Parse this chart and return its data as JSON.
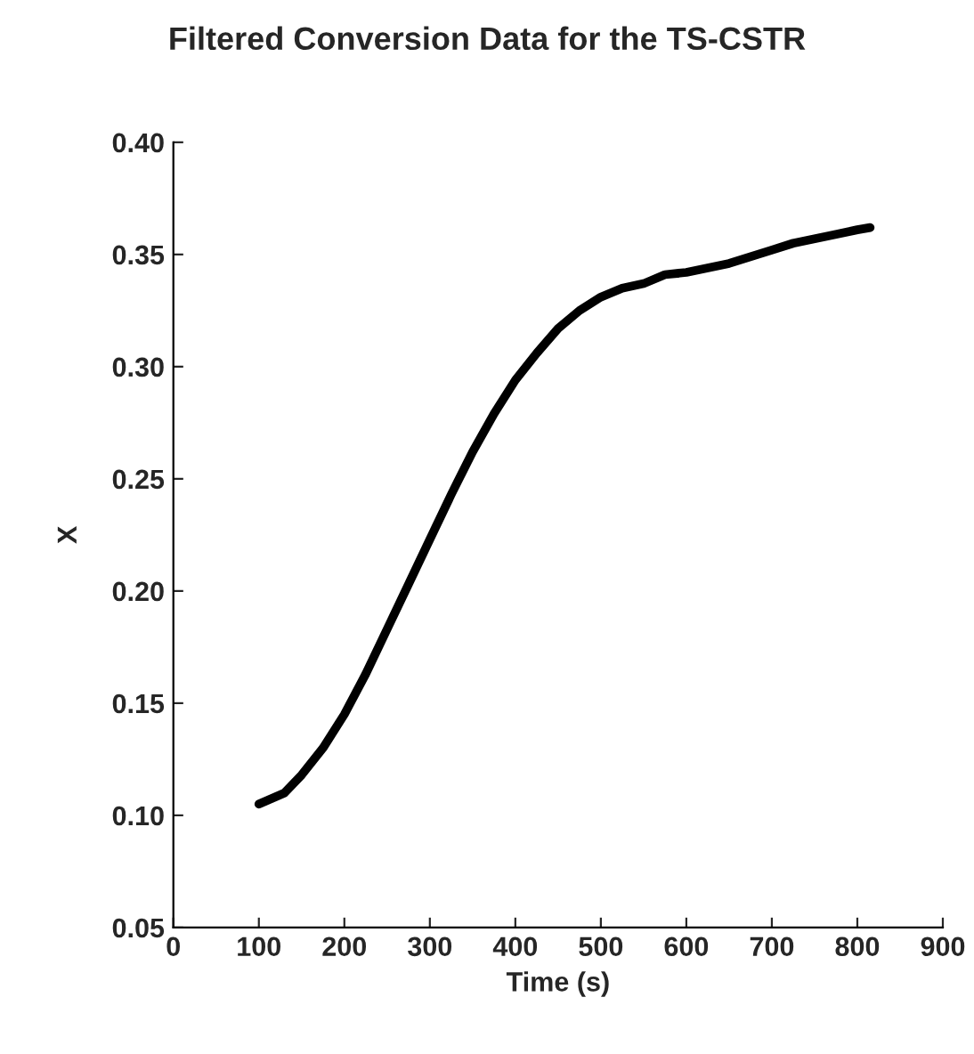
{
  "chart_data": {
    "type": "line",
    "title": "Filtered Conversion Data for the TS-CSTR",
    "xlabel": "Time (s)",
    "ylabel": "X",
    "series": [
      {
        "color": "#000000",
        "x": [
          100,
          130,
          150,
          175,
          200,
          225,
          250,
          275,
          300,
          325,
          350,
          375,
          400,
          425,
          450,
          475,
          500,
          525,
          550,
          575,
          600,
          625,
          650,
          675,
          700,
          725,
          750,
          775,
          800,
          815
        ],
        "values": [
          0.105,
          0.11,
          0.118,
          0.13,
          0.145,
          0.163,
          0.183,
          0.203,
          0.223,
          0.243,
          0.262,
          0.279,
          0.294,
          0.306,
          0.317,
          0.325,
          0.331,
          0.335,
          0.337,
          0.341,
          0.342,
          0.344,
          0.346,
          0.349,
          0.352,
          0.355,
          0.357,
          0.359,
          0.361,
          0.362
        ]
      }
    ],
    "xlim": [
      0,
      900
    ],
    "xticks": [
      0,
      100,
      200,
      300,
      400,
      500,
      600,
      700,
      800,
      900
    ],
    "ylim": [
      0.05,
      0.4
    ],
    "yticks": [
      {
        "value": 0.05,
        "label": "0.05"
      },
      {
        "value": 0.1,
        "label": "0.10"
      },
      {
        "value": 0.15,
        "label": "0.15"
      },
      {
        "value": 0.2,
        "label": "0.20"
      },
      {
        "value": 0.25,
        "label": "0.25"
      },
      {
        "value": 0.3,
        "label": "0.30"
      },
      {
        "value": 0.35,
        "label": "0.35"
      },
      {
        "value": 0.4,
        "label": "0.40"
      }
    ],
    "grid": false,
    "legend": false,
    "marker": "none",
    "line_style": "solid"
  }
}
